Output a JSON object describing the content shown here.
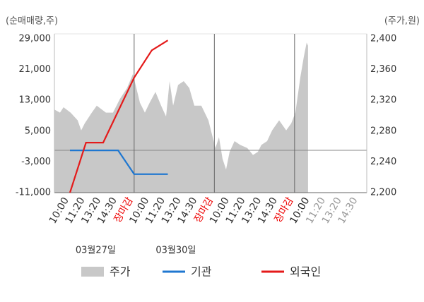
{
  "chart_data": {
    "type": "line",
    "y_axis_label": "(순매매량,주)",
    "y2_axis_label": "(주가,원)",
    "xlim": [
      -0.57,
      18.9
    ],
    "xticks": [
      {
        "value": 0,
        "label": "10:00"
      },
      {
        "value": 1,
        "label": "11:20"
      },
      {
        "value": 2,
        "label": "13:20"
      },
      {
        "value": 3,
        "label": "14:30"
      },
      {
        "value": 4,
        "label": "장마감"
      },
      {
        "value": 5,
        "label": "10:00"
      },
      {
        "value": 6,
        "label": "11:20"
      },
      {
        "value": 7,
        "label": "13:20"
      },
      {
        "value": 8,
        "label": "14:30"
      },
      {
        "value": 9,
        "label": "장마감"
      },
      {
        "value": 10,
        "label": "10:00"
      },
      {
        "value": 11,
        "label": "11:20"
      },
      {
        "value": 12,
        "label": "13:20"
      },
      {
        "value": 13,
        "label": "14:30"
      },
      {
        "value": 14,
        "label": "장마감"
      },
      {
        "value": 15,
        "label": "10:00"
      },
      {
        "value": 16,
        "label": "11:20"
      },
      {
        "value": 17,
        "label": "13:20"
      },
      {
        "value": 18,
        "label": "14:30"
      }
    ],
    "xtick_colors": [
      "#333",
      "#333",
      "#333",
      "#333",
      "#e00",
      "#333",
      "#333",
      "#333",
      "#333",
      "#e00",
      "#333",
      "#333",
      "#333",
      "#333",
      "#e00",
      "#222",
      "#999",
      "#999",
      "#999"
    ],
    "date_labels": [
      {
        "x": 2,
        "label": "03월27일"
      },
      {
        "x": 7,
        "label": "03월30일"
      }
    ],
    "ylim": [
      -11000,
      29000
    ],
    "yticks": [
      {
        "value": 29000,
        "label": "29,000"
      },
      {
        "value": 21000,
        "label": "21,000"
      },
      {
        "value": 13000,
        "label": "13,000"
      },
      {
        "value": 5000,
        "label": "5,000"
      },
      {
        "value": -3000,
        "label": "-3,000"
      },
      {
        "value": -11000,
        "label": "-11,000"
      }
    ],
    "y2lim": [
      2200,
      2400
    ],
    "y2ticks": [
      {
        "value": 2400,
        "label": "2,400"
      },
      {
        "value": 2360,
        "label": "2,360"
      },
      {
        "value": 2320,
        "label": "2,320"
      },
      {
        "value": 2280,
        "label": "2,280"
      },
      {
        "value": 2240,
        "label": "2,240"
      },
      {
        "value": 2200,
        "label": "2,200"
      }
    ],
    "series": [
      {
        "name": "주가",
        "type": "area",
        "axis": "y2",
        "color": "#c8c8c8",
        "x": [
          -0.57,
          -0.22,
          0,
          0.44,
          0.88,
          1.1,
          1.32,
          1.76,
          2.07,
          2.64,
          3.08,
          3.52,
          3.96,
          4.32,
          4.49,
          4.76,
          5.07,
          5.37,
          5.73,
          6.08,
          6.39,
          6.61,
          6.83,
          7.14,
          7.49,
          7.84,
          8.15,
          8.59,
          9.03,
          9.25,
          9.47,
          9.69,
          9.91,
          10.13,
          10.35,
          10.66,
          11.01,
          11.45,
          11.81,
          12.11,
          12.33,
          12.69,
          13.0,
          13.44,
          13.88,
          14.19,
          14.45,
          14.76,
          14.98,
          15.15,
          15.24
        ],
        "values": [
          2308,
          2304,
          2311,
          2304,
          2294,
          2281,
          2290,
          2304,
          2313,
          2304,
          2304,
          2322,
          2336,
          2354,
          2340,
          2317,
          2304,
          2317,
          2331,
          2313,
          2299,
          2345,
          2313,
          2340,
          2345,
          2336,
          2313,
          2313,
          2294,
          2276,
          2258,
          2272,
          2244,
          2230,
          2253,
          2267,
          2262,
          2258,
          2249,
          2253,
          2262,
          2267,
          2281,
          2294,
          2281,
          2290,
          2304,
          2350,
          2377,
          2395,
          2391
        ]
      },
      {
        "name": "기관",
        "axis": "y",
        "color": "#1f77d0",
        "x": [
          0.4,
          3.4,
          4.4,
          6.5
        ],
        "values": [
          0,
          0,
          -6200,
          -6200
        ]
      },
      {
        "name": "외국인",
        "axis": "y",
        "color": "#e41a1a",
        "x": [
          0.4,
          1.4,
          2.47,
          4.4,
          5.5,
          6.5
        ],
        "values": [
          -11000,
          2000,
          2000,
          18900,
          26000,
          28600
        ]
      }
    ]
  }
}
